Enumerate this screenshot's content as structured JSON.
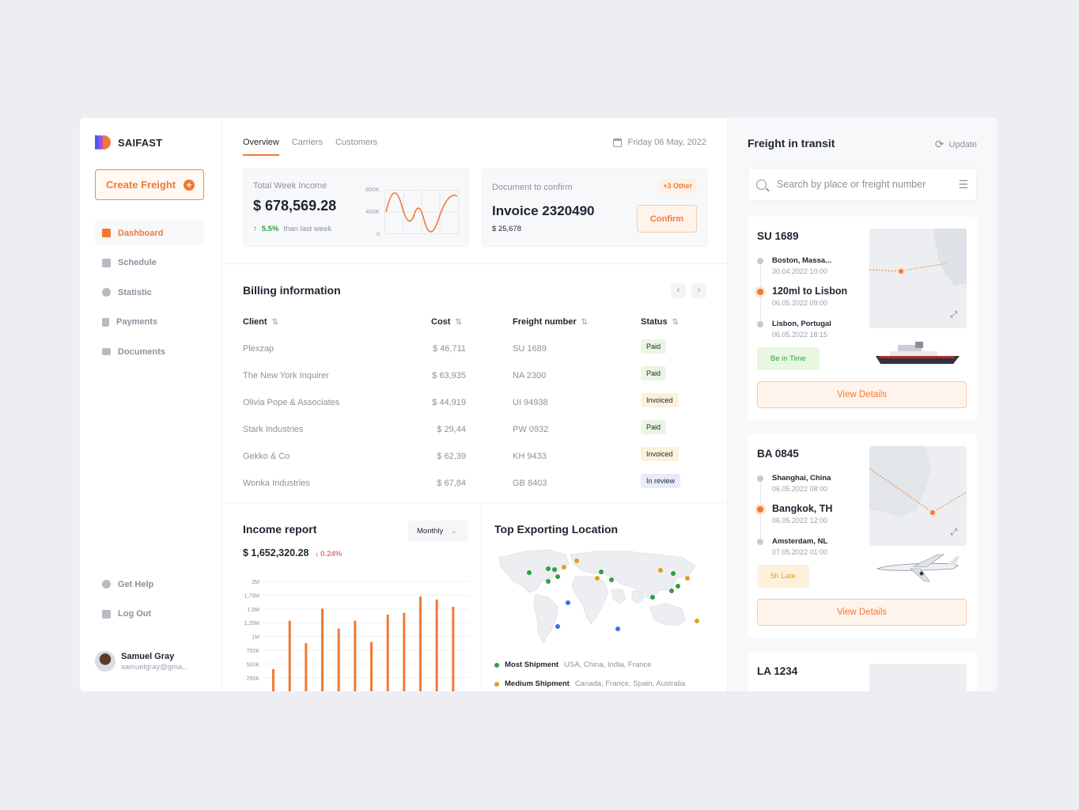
{
  "brand": {
    "name": "SAIFAST",
    "colors": [
      "#4b5bf0",
      "#b04ad8",
      "#f07a35"
    ]
  },
  "sidebar": {
    "create_label": "Create Freight",
    "items": [
      {
        "label": "Dashboard",
        "icon": "home-icon",
        "active": true
      },
      {
        "label": "Schedule",
        "icon": "calendar-icon"
      },
      {
        "label": "Statistic",
        "icon": "pie-chart-icon"
      },
      {
        "label": "Payments",
        "icon": "payments-icon"
      },
      {
        "label": "Documents",
        "icon": "folder-icon"
      }
    ],
    "bottom": [
      {
        "label": "Get Help",
        "icon": "help-icon"
      },
      {
        "label": "Log Out",
        "icon": "logout-icon"
      }
    ],
    "user": {
      "name": "Samuel Gray",
      "email": "samuelgray@gma..."
    }
  },
  "header": {
    "tabs": [
      "Overview",
      "Carriers",
      "Customers"
    ],
    "date": "Friday 06 May, 2022"
  },
  "income_card": {
    "label": "Total Week Income",
    "value": "$ 678,569.28",
    "change": "5.5%",
    "change_note": "than last week",
    "axis": [
      "800K",
      "400K",
      "0"
    ]
  },
  "doc_card": {
    "label": "Document to confirm",
    "badge": "+3 Other",
    "title": "Invoice 2320490",
    "amount": "$ 25,678",
    "confirm_label": "Confirm"
  },
  "billing": {
    "title": "Billing information",
    "columns": [
      "Client",
      "Cost",
      "Freight number",
      "Status"
    ],
    "rows": [
      {
        "client": "Plexzap",
        "cost": "$ 46,711",
        "freight": "SU 1689",
        "status": "Paid",
        "kind": "paid"
      },
      {
        "client": "The New York Inquirer",
        "cost": "$ 63,935",
        "freight": "NA 2300",
        "status": "Paid",
        "kind": "paid"
      },
      {
        "client": "Olivia Pope & Associates",
        "cost": "$ 44,919",
        "freight": "UI 94938",
        "status": "Invoiced",
        "kind": "invoiced"
      },
      {
        "client": "Stark Industries",
        "cost": "$ 29,44",
        "freight": "PW 0932",
        "status": "Paid",
        "kind": "paid"
      },
      {
        "client": "Gekko & Co",
        "cost": "$ 62,39",
        "freight": "KH 9433",
        "status": "Invoiced",
        "kind": "invoiced"
      },
      {
        "client": "Wonka Industries",
        "cost": "$ 67,84",
        "freight": "GB 8403",
        "status": "In review",
        "kind": "review"
      }
    ]
  },
  "income_report": {
    "title": "Income report",
    "period": "Monthly",
    "total": "$ 1,652,320.28",
    "change": "0.24%"
  },
  "chart_data": {
    "type": "bar",
    "yticks": [
      "2M",
      "1,75M",
      "1,5M",
      "1,25M",
      "1M",
      "750K",
      "500K",
      "250K"
    ],
    "values": [
      0.55,
      1.35,
      0.98,
      1.55,
      1.22,
      1.35,
      1.0,
      1.45,
      1.48,
      1.75,
      1.7,
      1.58
    ],
    "ylim": [
      0,
      2
    ],
    "color": "#f07a35"
  },
  "exporting": {
    "title": "Top Exporting Location",
    "legend": [
      {
        "name": "Most Shipment",
        "detail": "USA, China, India, France",
        "color": "#2f9e44"
      },
      {
        "name": "Medium Shipment",
        "detail": "Canada, France, Spain, Australia",
        "color": "#e0a020"
      }
    ]
  },
  "transit": {
    "title": "Freight in transit",
    "update_label": "Update",
    "search_placeholder": "Search by place or freight number",
    "freights": [
      {
        "code": "SU 1689",
        "stops": [
          {
            "name": "Boston,  Massa...",
            "date": "30.04.2022 10:00"
          },
          {
            "name": "120ml to Lisbon",
            "date": "06.05.2022 09:00"
          },
          {
            "name": "Lisbon, Portugal",
            "date": "06.05.2022 18:15"
          }
        ],
        "status": "Be in Time",
        "view_label": "View Details"
      },
      {
        "code": "BA 0845",
        "stops": [
          {
            "name": "Shanghai, China",
            "date": "06.05.2022 08:00"
          },
          {
            "name": "Bangkok, TH",
            "date": "06.05.2022 12:00"
          },
          {
            "name": "Amsterdam, NL",
            "date": "07.05.2022 01:00"
          }
        ],
        "status": "5h Late",
        "view_label": "View Details"
      },
      {
        "code": "LA 1234"
      }
    ]
  }
}
